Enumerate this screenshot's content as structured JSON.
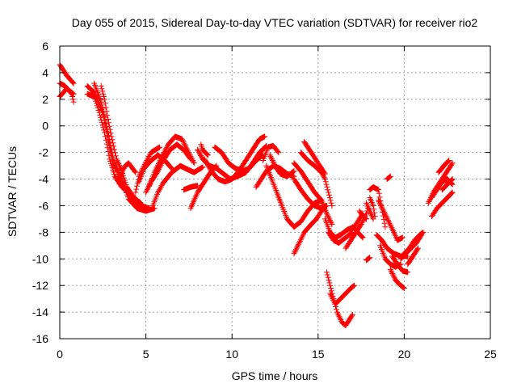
{
  "chart_data": {
    "type": "scatter",
    "title": "Day 055 of 2015, Sidereal Day-to-day VTEC variation (SDTVAR) for receiver rio2",
    "xlabel": "GPS time / hours",
    "ylabel": "SDTVAR / TECUs",
    "xlim": [
      0,
      25
    ],
    "ylim": [
      -16,
      6
    ],
    "xticks": [
      0,
      5,
      10,
      15,
      20,
      25
    ],
    "yticks": [
      6,
      4,
      2,
      0,
      -2,
      -4,
      -6,
      -8,
      -10,
      -12,
      -14,
      -16
    ],
    "grid": true,
    "marker": "+",
    "color": "#ff0000",
    "tracks": [
      [
        [
          0,
          4.6
        ],
        [
          0.4,
          3.8
        ],
        [
          0.8,
          3.2
        ]
      ],
      [
        [
          0,
          3.2
        ],
        [
          0.3,
          3.0
        ],
        [
          0.7,
          2.4
        ],
        [
          0.8,
          1.8
        ]
      ],
      [
        [
          0,
          2.2
        ],
        [
          0.4,
          2.8
        ],
        [
          0.8,
          2.4
        ]
      ],
      [
        [
          1.6,
          2.4
        ],
        [
          2.0,
          2.2
        ],
        [
          2.3,
          1.0
        ],
        [
          2.6,
          -0.5
        ],
        [
          2.9,
          -2.5
        ],
        [
          3.2,
          -3.8
        ],
        [
          3.6,
          -4.6
        ],
        [
          4.0,
          -5.0
        ],
        [
          4.5,
          -5.6
        ],
        [
          4.8,
          -6.1
        ]
      ],
      [
        [
          1.6,
          3.0
        ],
        [
          2.0,
          2.5
        ],
        [
          2.5,
          1.0
        ],
        [
          2.8,
          -1.0
        ],
        [
          3.1,
          -2.8
        ],
        [
          3.5,
          -3.8
        ],
        [
          3.8,
          -4.7
        ],
        [
          4.2,
          -5.5
        ],
        [
          4.7,
          -6.0
        ],
        [
          5.2,
          -6.2
        ]
      ],
      [
        [
          2.0,
          3.2
        ],
        [
          2.4,
          1.8
        ],
        [
          2.8,
          -0.5
        ],
        [
          3.1,
          -2.5
        ],
        [
          3.4,
          -3.5
        ],
        [
          3.7,
          -4.4
        ],
        [
          4.0,
          -5.5
        ],
        [
          4.5,
          -6.2
        ],
        [
          5.0,
          -6.4
        ],
        [
          5.5,
          -6.2
        ]
      ],
      [
        [
          2.4,
          3.0
        ],
        [
          2.6,
          2.0
        ],
        [
          2.8,
          0.5
        ],
        [
          3.0,
          -0.8
        ],
        [
          3.3,
          -2.5
        ],
        [
          3.6,
          -3.4
        ],
        [
          3.9,
          -4.6
        ],
        [
          4.3,
          -5.4
        ],
        [
          4.7,
          -5.8
        ]
      ],
      [
        [
          3.4,
          -4.0
        ],
        [
          3.6,
          -3.5
        ],
        [
          3.8,
          -3.0
        ],
        [
          4.0,
          -2.8
        ],
        [
          4.4,
          -3.5
        ]
      ],
      [
        [
          5.4,
          -6.0
        ],
        [
          5.7,
          -5.0
        ],
        [
          6.0,
          -4.3
        ],
        [
          6.5,
          -3.5
        ],
        [
          7.0,
          -3.0
        ],
        [
          7.3,
          -3.2
        ],
        [
          7.8,
          -3.5
        ],
        [
          8.3,
          -3.1
        ]
      ],
      [
        [
          5.0,
          -5.0
        ],
        [
          5.3,
          -4.2
        ],
        [
          5.7,
          -3.4
        ],
        [
          6.0,
          -2.6
        ],
        [
          6.4,
          -1.8
        ],
        [
          6.8,
          -1.4
        ],
        [
          7.2,
          -1.8
        ],
        [
          7.6,
          -2.5
        ]
      ],
      [
        [
          5.2,
          -4.5
        ],
        [
          5.5,
          -3.5
        ],
        [
          5.9,
          -2.4
        ],
        [
          6.3,
          -1.4
        ],
        [
          6.7,
          -0.8
        ],
        [
          7.1,
          -1.0
        ],
        [
          7.4,
          -1.8
        ],
        [
          7.8,
          -2.8
        ]
      ],
      [
        [
          4.6,
          -4.2
        ],
        [
          4.9,
          -3.2
        ],
        [
          5.3,
          -2.6
        ],
        [
          5.7,
          -2.2
        ],
        [
          6.1,
          -2.6
        ],
        [
          6.5,
          -3.2
        ]
      ],
      [
        [
          4.4,
          -5.0
        ],
        [
          4.6,
          -3.8
        ],
        [
          4.9,
          -3.0
        ],
        [
          5.3,
          -2.0
        ],
        [
          5.8,
          -1.6
        ]
      ],
      [
        [
          8.0,
          -1.8
        ],
        [
          8.3,
          -2.5
        ],
        [
          8.7,
          -3.0
        ],
        [
          9.1,
          -3.2
        ],
        [
          9.5,
          -3.6
        ],
        [
          9.9,
          -4.0
        ],
        [
          10.3,
          -3.8
        ],
        [
          10.8,
          -3.5
        ],
        [
          11.2,
          -2.8
        ],
        [
          11.6,
          -2.0
        ],
        [
          12.0,
          -1.5
        ]
      ],
      [
        [
          8.4,
          -2.5
        ],
        [
          8.8,
          -3.4
        ],
        [
          9.2,
          -4.0
        ],
        [
          9.6,
          -4.2
        ],
        [
          10.0,
          -4.0
        ],
        [
          10.4,
          -3.4
        ],
        [
          10.8,
          -2.6
        ],
        [
          11.2,
          -1.8
        ],
        [
          11.6,
          -1.0
        ],
        [
          11.9,
          -0.8
        ]
      ],
      [
        [
          9.0,
          -1.6
        ],
        [
          9.4,
          -2.0
        ],
        [
          9.8,
          -2.8
        ],
        [
          10.2,
          -3.2
        ],
        [
          10.6,
          -3.4
        ],
        [
          11.0,
          -3.2
        ],
        [
          11.4,
          -2.6
        ],
        [
          11.8,
          -2.2
        ]
      ],
      [
        [
          7.6,
          -6.2
        ],
        [
          7.8,
          -5.6
        ],
        [
          8.0,
          -5.0
        ],
        [
          8.2,
          -4.6
        ],
        [
          8.5,
          -4.0
        ],
        [
          8.8,
          -3.4
        ],
        [
          9.1,
          -3.0
        ]
      ],
      [
        [
          7.2,
          -4.8
        ],
        [
          7.6,
          -4.6
        ],
        [
          8.0,
          -4.5
        ]
      ],
      [
        [
          8.2,
          -1.4
        ],
        [
          8.3,
          -1.8
        ],
        [
          8.6,
          -2.2
        ]
      ],
      [
        [
          12.0,
          -3.0
        ],
        [
          12.3,
          -4.0
        ],
        [
          12.6,
          -5.0
        ],
        [
          12.9,
          -6.0
        ],
        [
          13.2,
          -7.0
        ],
        [
          13.6,
          -7.6
        ],
        [
          14.0,
          -7.2
        ],
        [
          14.4,
          -6.4
        ],
        [
          14.8,
          -5.8
        ],
        [
          15.2,
          -5.6
        ]
      ],
      [
        [
          12.2,
          -2.2
        ],
        [
          12.5,
          -3.0
        ],
        [
          12.8,
          -3.6
        ],
        [
          13.2,
          -3.8
        ],
        [
          13.6,
          -3.4
        ]
      ],
      [
        [
          11.8,
          -2.6
        ],
        [
          12.1,
          -1.6
        ],
        [
          12.4,
          -1.5
        ],
        [
          12.7,
          -2.0
        ]
      ],
      [
        [
          11.4,
          -4.6
        ],
        [
          11.7,
          -4.0
        ],
        [
          12.0,
          -3.4
        ],
        [
          12.4,
          -3.0
        ],
        [
          12.8,
          -3.2
        ],
        [
          13.2,
          -3.6
        ],
        [
          13.6,
          -3.8
        ]
      ],
      [
        [
          13.6,
          -2.8
        ],
        [
          14.0,
          -3.4
        ],
        [
          14.4,
          -4.2
        ],
        [
          14.8,
          -5.0
        ],
        [
          15.2,
          -5.6
        ],
        [
          15.5,
          -6.6
        ],
        [
          15.8,
          -7.4
        ]
      ],
      [
        [
          14.0,
          -2.0
        ],
        [
          14.4,
          -2.6
        ],
        [
          14.8,
          -3.0
        ],
        [
          15.2,
          -3.5
        ],
        [
          15.4,
          -4.0
        ],
        [
          15.6,
          -5.0
        ],
        [
          15.8,
          -6.0
        ]
      ],
      [
        [
          13.6,
          -4.0
        ],
        [
          14.0,
          -4.8
        ],
        [
          14.4,
          -5.5
        ],
        [
          14.8,
          -6.0
        ],
        [
          15.2,
          -6.2
        ],
        [
          15.5,
          -6.0
        ]
      ],
      [
        [
          13.6,
          -9.6
        ],
        [
          13.9,
          -8.8
        ],
        [
          14.2,
          -8.0
        ],
        [
          14.6,
          -7.4
        ],
        [
          14.9,
          -7.0
        ],
        [
          15.2,
          -6.4
        ],
        [
          15.4,
          -6.0
        ]
      ],
      [
        [
          14.2,
          -1.2
        ],
        [
          14.5,
          -1.8
        ],
        [
          14.8,
          -2.4
        ],
        [
          15.1,
          -3.0
        ],
        [
          15.4,
          -3.6
        ]
      ],
      [
        [
          15.4,
          -7.0
        ],
        [
          15.7,
          -8.0
        ],
        [
          16.0,
          -8.4
        ],
        [
          16.3,
          -8.2
        ],
        [
          16.7,
          -7.8
        ],
        [
          17.1,
          -7.6
        ],
        [
          17.4,
          -7.0
        ],
        [
          17.6,
          -6.6
        ]
      ],
      [
        [
          15.6,
          -8.0
        ],
        [
          15.9,
          -8.6
        ],
        [
          16.2,
          -8.8
        ],
        [
          16.6,
          -8.4
        ],
        [
          17.0,
          -8.0
        ]
      ],
      [
        [
          15.5,
          -11.0
        ],
        [
          15.7,
          -12.0
        ],
        [
          15.9,
          -13.0
        ],
        [
          16.1,
          -14.0
        ],
        [
          16.4,
          -14.8
        ],
        [
          16.6,
          -15.0
        ],
        [
          16.8,
          -14.6
        ],
        [
          17.0,
          -14.2
        ]
      ],
      [
        [
          15.7,
          -12.6
        ],
        [
          16.0,
          -13.4
        ],
        [
          16.3,
          -13.0
        ],
        [
          16.6,
          -12.6
        ],
        [
          16.9,
          -12.2
        ],
        [
          17.1,
          -12.0
        ]
      ],
      [
        [
          16.6,
          -9.2
        ],
        [
          16.9,
          -8.6
        ],
        [
          17.2,
          -8.0
        ],
        [
          17.5,
          -7.4
        ],
        [
          17.8,
          -6.6
        ],
        [
          17.9,
          -6.2
        ]
      ],
      [
        [
          17.0,
          -7.6
        ],
        [
          17.3,
          -8.0
        ],
        [
          17.6,
          -8.4
        ]
      ],
      [
        [
          17.4,
          -6.4
        ],
        [
          17.6,
          -6.8
        ],
        [
          17.8,
          -7.0
        ]
      ],
      [
        [
          17.8,
          -5.8
        ],
        [
          18.0,
          -6.4
        ],
        [
          18.2,
          -7.0
        ]
      ],
      [
        [
          17.8,
          -10.1
        ],
        [
          18.0,
          -9.9
        ]
      ],
      [
        [
          18.0,
          -4.8
        ],
        [
          18.2,
          -4.6
        ],
        [
          18.5,
          -4.8
        ],
        [
          18.7,
          -6.2
        ],
        [
          18.9,
          -7.6
        ]
      ],
      [
        [
          18.0,
          -5.4
        ],
        [
          18.2,
          -6.0
        ],
        [
          18.3,
          -6.8
        ]
      ],
      [
        [
          18.4,
          -8.2
        ],
        [
          18.7,
          -8.6
        ],
        [
          19.0,
          -9.2
        ],
        [
          19.4,
          -9.6
        ],
        [
          19.8,
          -9.8
        ],
        [
          20.2,
          -9.8
        ]
      ],
      [
        [
          18.5,
          -5.6
        ],
        [
          18.8,
          -6.4
        ],
        [
          19.1,
          -7.2
        ],
        [
          19.4,
          -8.0
        ],
        [
          19.6,
          -8.6
        ],
        [
          19.9,
          -8.4
        ]
      ],
      [
        [
          19.3,
          -9.8
        ],
        [
          19.6,
          -10.4
        ],
        [
          19.9,
          -10.9
        ],
        [
          20.2,
          -11.0
        ]
      ],
      [
        [
          18.6,
          -9.0
        ],
        [
          18.9,
          -10.0
        ],
        [
          19.2,
          -10.4
        ],
        [
          19.5,
          -10.6
        ],
        [
          19.8,
          -10.4
        ]
      ],
      [
        [
          19.2,
          -10.8
        ],
        [
          19.5,
          -11.6
        ],
        [
          19.8,
          -12.0
        ],
        [
          20.0,
          -12.2
        ]
      ],
      [
        [
          19.0,
          -4.0
        ],
        [
          19.2,
          -3.8
        ]
      ],
      [
        [
          19.8,
          -10.0
        ],
        [
          20.1,
          -9.6
        ],
        [
          20.4,
          -9.2
        ],
        [
          20.7,
          -8.8
        ],
        [
          21.0,
          -8.2
        ]
      ],
      [
        [
          20.0,
          -9.6
        ],
        [
          20.3,
          -9.2
        ],
        [
          20.6,
          -8.6
        ],
        [
          20.9,
          -8.2
        ],
        [
          21.1,
          -8.0
        ]
      ],
      [
        [
          20.2,
          -10.4
        ],
        [
          20.5,
          -9.8
        ],
        [
          20.8,
          -9.2
        ]
      ],
      [
        [
          21.4,
          -5.8
        ],
        [
          21.7,
          -5.0
        ],
        [
          22.0,
          -4.4
        ],
        [
          22.3,
          -3.8
        ],
        [
          22.6,
          -3.2
        ],
        [
          22.8,
          -2.8
        ]
      ],
      [
        [
          21.6,
          -5.4
        ],
        [
          21.9,
          -4.8
        ],
        [
          22.2,
          -4.2
        ],
        [
          22.5,
          -4.0
        ],
        [
          22.8,
          -4.4
        ]
      ],
      [
        [
          21.6,
          -6.8
        ],
        [
          21.9,
          -6.2
        ],
        [
          22.2,
          -5.8
        ],
        [
          22.5,
          -5.4
        ],
        [
          22.8,
          -5.0
        ]
      ],
      [
        [
          22.0,
          -3.5
        ],
        [
          22.3,
          -3.0
        ],
        [
          22.6,
          -2.6
        ]
      ],
      [
        [
          22.2,
          -4.8
        ],
        [
          22.5,
          -4.4
        ],
        [
          22.8,
          -4.0
        ]
      ]
    ]
  }
}
